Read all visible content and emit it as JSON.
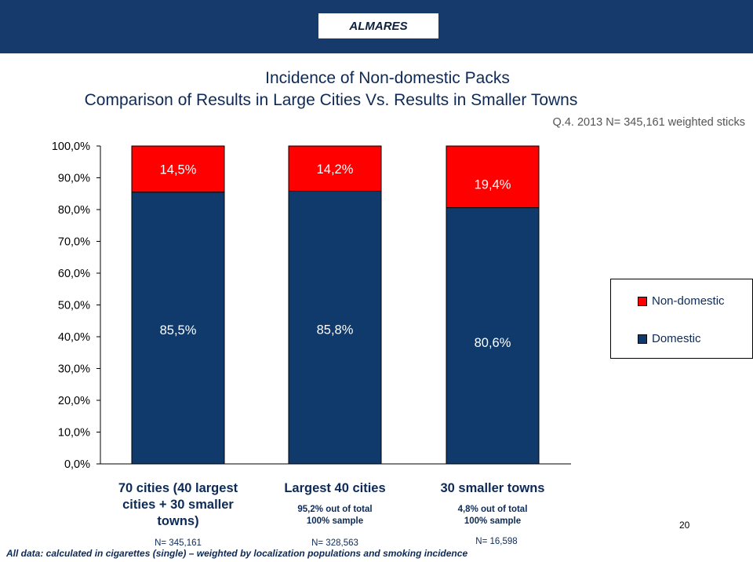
{
  "brand": "ALMARES",
  "title_line1": "Incidence of Non-domestic Packs",
  "title_line2": "Comparison of Results in Large Cities Vs. Results in Smaller Towns",
  "note_q": "Q.4.",
  "note_rest": "2013 N= 345,161 weighted sticks",
  "colors": {
    "domestic": "#0f3a6b",
    "non_domestic": "#ff0000",
    "banner": "#163a6b"
  },
  "legend": {
    "items": [
      {
        "label": "Non-domestic",
        "color": "#ff0000"
      },
      {
        "label": "Domestic",
        "color": "#0f3a6b"
      }
    ]
  },
  "categories_text": [
    {
      "main": "70 cities (40 largest cities + 30 smaller towns)",
      "sub": "",
      "n": "N= 345,161"
    },
    {
      "main": "Largest 40 cities",
      "sub": "95,2% out of total 100% sample",
      "n": "N= 328,563"
    },
    {
      "main": "30 smaller towns",
      "sub": "4,8% out of total 100% sample",
      "n": "N= 16,598"
    }
  ],
  "footer": "All data: calculated in cigarettes (single) – weighted by localization populations and  smoking incidence",
  "page_number": "20",
  "chart_data": {
    "type": "bar",
    "stacked": true,
    "categories": [
      "70 cities (40 largest cities + 30 smaller towns)",
      "Largest 40 cities",
      "30 smaller towns"
    ],
    "series": [
      {
        "name": "Domestic",
        "values": [
          85.5,
          85.8,
          80.6
        ],
        "labels": [
          "85,5%",
          "85,8%",
          "80,6%"
        ]
      },
      {
        "name": "Non-domestic",
        "values": [
          14.5,
          14.2,
          19.4
        ],
        "labels": [
          "14,5%",
          "14,2%",
          "19,4%"
        ]
      }
    ],
    "ylim": [
      0,
      100
    ],
    "yticks": [
      "0,0%",
      "10,0%",
      "20,0%",
      "30,0%",
      "40,0%",
      "50,0%",
      "60,0%",
      "70,0%",
      "80,0%",
      "90,0%",
      "100,0%"
    ],
    "legend_position": "right",
    "grid": false
  }
}
